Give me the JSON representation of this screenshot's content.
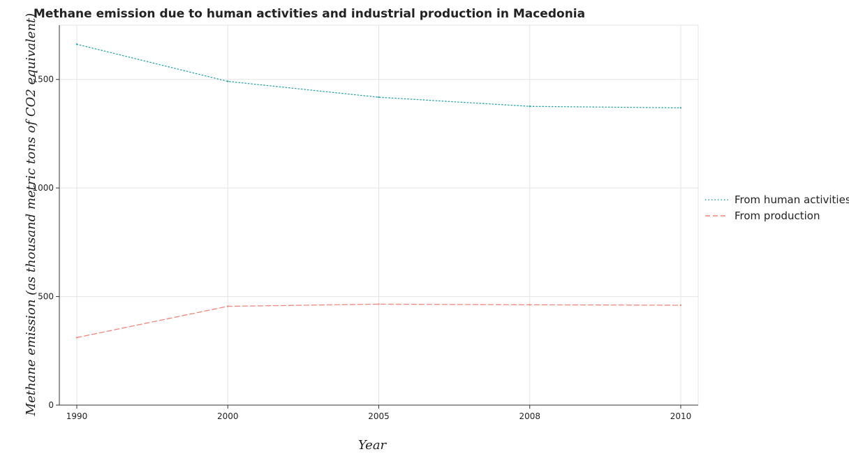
{
  "chart_data": {
    "type": "line",
    "title": "Methane emission due to human activities and industrial production in Macedonia",
    "xlabel": "Year",
    "ylabel": "Methane emission (as thousand metric tons of CO2 equivalent)",
    "categories": [
      "1990",
      "2000",
      "2005",
      "2008",
      "2010"
    ],
    "ylim": [
      0,
      1750
    ],
    "yticks": [
      0,
      500,
      1000,
      1500
    ],
    "grid": true,
    "legend_position": "right",
    "series": [
      {
        "name": "From human activities",
        "color": "#2ba3a7",
        "dash": "dotted",
        "values": [
          1662.0,
          1491.0,
          1418.0,
          1376.0,
          1369.0
        ]
      },
      {
        "name": "From production",
        "color": "#f0867c",
        "dash": "dashed",
        "values": [
          311.0,
          455.0,
          465.0,
          462.0,
          460.0
        ]
      }
    ]
  }
}
